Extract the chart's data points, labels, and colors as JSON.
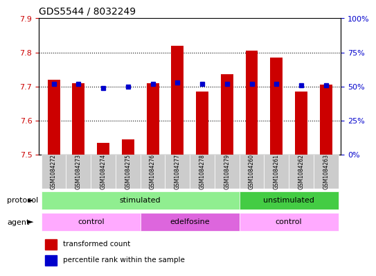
{
  "title": "GDS5544 / 8032249",
  "samples": [
    "GSM1084272",
    "GSM1084273",
    "GSM1084274",
    "GSM1084275",
    "GSM1084276",
    "GSM1084277",
    "GSM1084278",
    "GSM1084279",
    "GSM1084260",
    "GSM1084261",
    "GSM1084262",
    "GSM1084263"
  ],
  "red_values": [
    7.72,
    7.71,
    7.535,
    7.545,
    7.71,
    7.82,
    7.685,
    7.735,
    7.805,
    7.785,
    7.685,
    7.705
  ],
  "blue_values": [
    52,
    52,
    49,
    50,
    52,
    53,
    52,
    52,
    52,
    52,
    51,
    51
  ],
  "ylim_left": [
    7.5,
    7.9
  ],
  "ylim_right": [
    0,
    100
  ],
  "yticks_left": [
    7.5,
    7.6,
    7.7,
    7.8,
    7.9
  ],
  "yticks_right": [
    0,
    25,
    50,
    75,
    100
  ],
  "ytick_labels_right": [
    "0%",
    "25%",
    "50%",
    "75%",
    "100%"
  ],
  "red_color": "#cc0000",
  "blue_color": "#0000cc",
  "bar_width": 0.5,
  "protocol_labels": [
    {
      "text": "stimulated",
      "start": 0,
      "end": 7,
      "color": "#90ee90"
    },
    {
      "text": "unstimulated",
      "start": 8,
      "end": 11,
      "color": "#44cc44"
    }
  ],
  "agent_labels": [
    {
      "text": "control",
      "start": 0,
      "end": 3,
      "color": "#ffaaff"
    },
    {
      "text": "edelfosine",
      "start": 4,
      "end": 7,
      "color": "#dd66dd"
    },
    {
      "text": "control",
      "start": 8,
      "end": 11,
      "color": "#ffaaff"
    }
  ],
  "protocol_row_label": "protocol",
  "agent_row_label": "agent",
  "legend_red": "transformed count",
  "legend_blue": "percentile rank within the sample",
  "label_color_left": "#cc0000",
  "label_color_right": "#0000cc",
  "sample_bg_color": "#cccccc"
}
